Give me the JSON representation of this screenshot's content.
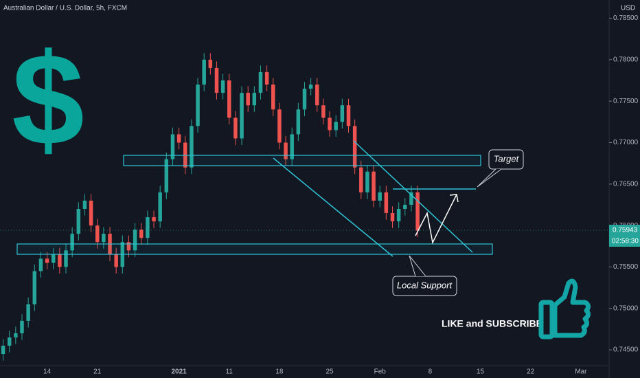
{
  "chart_data": {
    "type": "candlestick",
    "title": "Australian Dollar / U.S. Dollar, 5h, FXCM",
    "currency": "USD",
    "up_color": "#26a69a",
    "down_color": "#ef5350",
    "categories": [
      null,
      null,
      null,
      null,
      null,
      null,
      null,
      "14",
      null,
      null,
      null,
      null,
      null,
      null,
      null,
      "21",
      null,
      null,
      null,
      null,
      null,
      null,
      null,
      null,
      null,
      null,
      null,
      null,
      "2021",
      null,
      null,
      null,
      null,
      null,
      null,
      null,
      "11",
      null,
      null,
      null,
      null,
      null,
      null,
      null,
      "18",
      null,
      null,
      null,
      null,
      null,
      null,
      null,
      "25",
      null,
      null,
      null,
      null,
      null,
      null,
      null,
      "Feb",
      null,
      null,
      null,
      null,
      null,
      null,
      null,
      "8",
      null,
      null,
      null,
      null,
      null,
      null,
      null,
      "15",
      null,
      null,
      null,
      null,
      null,
      null,
      null,
      "22",
      null,
      null,
      null,
      null,
      null,
      null,
      null,
      "Mar",
      null,
      null,
      null,
      null
    ],
    "open": [
      0.7445,
      0.7455,
      0.7465,
      0.747,
      0.7485,
      0.7505,
      0.7545,
      0.756,
      0.7555,
      0.7565,
      0.755,
      0.757,
      0.759,
      0.762,
      0.763,
      0.76,
      0.758,
      0.759,
      0.7565,
      0.755,
      0.758,
      0.757,
      0.7595,
      0.7585,
      0.761,
      0.7605,
      0.764,
      0.768,
      0.771,
      0.77,
      0.767,
      0.772,
      0.777,
      0.78,
      0.779,
      0.776,
      0.7775,
      0.773,
      0.7705,
      0.776,
      0.7745,
      0.776,
      0.7785,
      0.777,
      0.774,
      0.77,
      0.768,
      0.771,
      0.774,
      0.7765,
      0.777,
      0.7745,
      0.773,
      0.7715,
      0.7725,
      0.7745,
      0.772,
      0.767,
      0.764,
      0.7665,
      0.763,
      0.764,
      0.7615,
      0.7605,
      0.762,
      0.7625,
      0.764,
      null,
      null,
      null,
      null,
      null,
      null,
      null,
      null,
      null,
      null,
      null,
      null,
      null,
      null,
      null,
      null,
      null,
      null,
      null,
      null,
      null,
      null,
      null,
      null,
      null,
      null,
      null,
      null,
      null,
      null
    ],
    "high": [
      0.7463,
      0.7473,
      0.7478,
      0.7493,
      0.7513,
      0.7553,
      0.7568,
      0.7568,
      0.7573,
      0.7573,
      0.7578,
      0.7598,
      0.7628,
      0.7638,
      0.7638,
      0.7608,
      0.7598,
      0.7598,
      0.7573,
      0.7588,
      0.7588,
      0.7603,
      0.7603,
      0.7618,
      0.7618,
      0.7648,
      0.7688,
      0.7718,
      0.7718,
      0.7708,
      0.7728,
      0.7778,
      0.7808,
      0.7808,
      0.7798,
      0.7783,
      0.7783,
      0.7738,
      0.7768,
      0.7768,
      0.7768,
      0.7793,
      0.7793,
      0.7778,
      0.7748,
      0.7708,
      0.7718,
      0.7748,
      0.7773,
      0.7778,
      0.7778,
      0.7753,
      0.7738,
      0.7733,
      0.7753,
      0.7753,
      0.7728,
      0.7678,
      0.7673,
      0.7673,
      0.7648,
      0.7648,
      0.7623,
      0.7628,
      0.7633,
      0.7648,
      0.7648,
      null,
      null,
      null,
      null,
      null,
      null,
      null,
      null,
      null,
      null,
      null,
      null,
      null,
      null,
      null,
      null,
      null,
      null,
      null,
      null,
      null,
      null,
      null,
      null,
      null,
      null,
      null,
      null,
      null,
      null
    ],
    "low": [
      0.7437,
      0.7447,
      0.7457,
      0.7462,
      0.7477,
      0.7497,
      0.7537,
      0.7547,
      0.7547,
      0.7542,
      0.7542,
      0.7562,
      0.7582,
      0.7612,
      0.7592,
      0.7572,
      0.7572,
      0.7557,
      0.7542,
      0.7542,
      0.7562,
      0.7562,
      0.7577,
      0.7577,
      0.7597,
      0.7597,
      0.7632,
      0.7672,
      0.7692,
      0.7662,
      0.7662,
      0.7712,
      0.7762,
      0.7782,
      0.7752,
      0.7752,
      0.7722,
      0.7697,
      0.7697,
      0.7737,
      0.7737,
      0.7752,
      0.7762,
      0.7732,
      0.7692,
      0.7672,
      0.7672,
      0.7702,
      0.7732,
      0.7757,
      0.7737,
      0.7722,
      0.7707,
      0.7707,
      0.7717,
      0.7712,
      0.7662,
      0.7632,
      0.7632,
      0.7622,
      0.7622,
      0.7607,
      0.7597,
      0.7597,
      0.7612,
      0.7617,
      0.7586,
      null,
      null,
      null,
      null,
      null,
      null,
      null,
      null,
      null,
      null,
      null,
      null,
      null,
      null,
      null,
      null,
      null,
      null,
      null,
      null,
      null,
      null,
      null,
      null,
      null,
      null,
      null,
      null,
      null,
      null
    ],
    "close": [
      0.7455,
      0.7465,
      0.747,
      0.7485,
      0.7505,
      0.7545,
      0.756,
      0.7555,
      0.7565,
      0.755,
      0.757,
      0.759,
      0.762,
      0.763,
      0.76,
      0.758,
      0.759,
      0.7565,
      0.755,
      0.758,
      0.757,
      0.7595,
      0.7585,
      0.761,
      0.7605,
      0.764,
      0.768,
      0.771,
      0.77,
      0.767,
      0.772,
      0.777,
      0.78,
      0.779,
      0.776,
      0.7775,
      0.773,
      0.7705,
      0.776,
      0.7745,
      0.776,
      0.7785,
      0.777,
      0.774,
      0.77,
      0.768,
      0.771,
      0.774,
      0.7765,
      0.777,
      0.7745,
      0.773,
      0.7715,
      0.7725,
      0.7745,
      0.772,
      0.767,
      0.764,
      0.7665,
      0.763,
      0.764,
      0.7615,
      0.7605,
      0.762,
      0.7625,
      0.764,
      0.7594,
      null,
      null,
      null,
      null,
      null,
      null,
      null,
      null,
      null,
      null,
      null,
      null,
      null,
      null,
      null,
      null,
      null,
      null,
      null,
      null,
      null,
      null,
      null,
      null,
      null,
      null,
      null,
      null,
      null,
      null
    ],
    "ylim": [
      0.7431,
      0.7872
    ],
    "yticks": [
      {
        "value": 0.745,
        "label": "0.74500"
      },
      {
        "value": 0.75,
        "label": "0.75000"
      },
      {
        "value": 0.755,
        "label": "0.75500"
      },
      {
        "value": 0.76,
        "label": "0.76000"
      },
      {
        "value": 0.765,
        "label": "0.76500"
      },
      {
        "value": 0.77,
        "label": "0.77000"
      },
      {
        "value": 0.775,
        "label": "0.77500"
      },
      {
        "value": 0.78,
        "label": "0.78000"
      },
      {
        "value": 0.785,
        "label": "0.78500"
      }
    ],
    "last_price": 0.75943,
    "countdown": "02:58:30",
    "annotations": {
      "logo": "$",
      "target": "Target",
      "support": "Local Support",
      "cta": "LIKE and SUBSCRIBE"
    }
  }
}
